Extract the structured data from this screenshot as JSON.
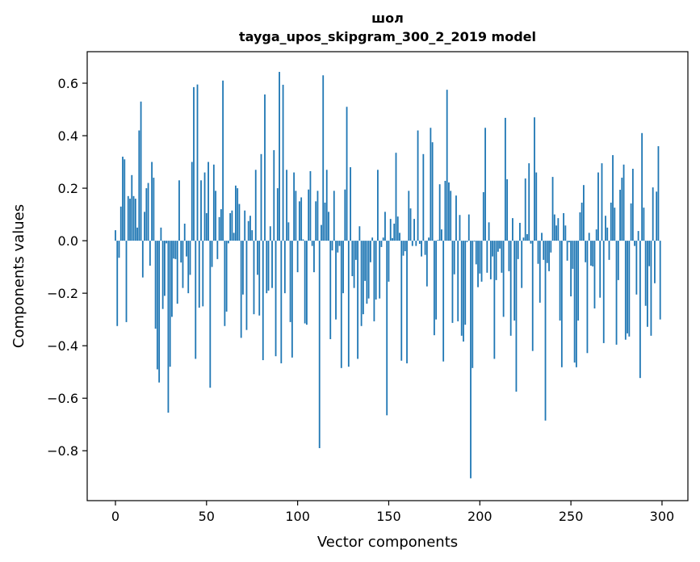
{
  "chart_data": {
    "type": "bar",
    "title": "шол",
    "subtitle": "tayga_upos_skipgram_300_2_2019 model",
    "xlabel": "Vector components",
    "ylabel": "Components values",
    "xlim": [
      -15.5,
      314.2
    ],
    "ylim": [
      -0.99,
      0.72
    ],
    "xticks": [
      0,
      50,
      100,
      150,
      200,
      250,
      300
    ],
    "xtick_labels": [
      "0",
      "50",
      "100",
      "150",
      "200",
      "250",
      "300"
    ],
    "yticks": [
      0.6,
      0.4,
      0.2,
      0.0,
      -0.2,
      -0.4,
      -0.6,
      -0.8
    ],
    "ytick_labels": [
      "0.6",
      "0.4",
      "0.2",
      "0.0",
      "−0.2",
      "−0.4",
      "−0.6",
      "−0.8"
    ],
    "grid": false,
    "color": "#1f77b4",
    "values": [
      0.04,
      -0.325,
      -0.065,
      0.13,
      0.32,
      0.31,
      -0.31,
      0.17,
      0.16,
      0.25,
      0.17,
      0.16,
      0.05,
      0.42,
      0.53,
      -0.14,
      0.11,
      0.2,
      0.22,
      -0.095,
      0.3,
      0.24,
      -0.335,
      -0.49,
      -0.54,
      0.05,
      -0.26,
      -0.21,
      -0.01,
      -0.655,
      -0.48,
      -0.29,
      -0.068,
      -0.07,
      -0.24,
      0.23,
      -0.083,
      -0.18,
      0.065,
      -0.06,
      -0.2,
      -0.13,
      0.3,
      0.585,
      -0.45,
      0.595,
      -0.255,
      0.23,
      -0.25,
      0.26,
      0.105,
      0.3,
      -0.56,
      -0.1,
      0.29,
      0.19,
      -0.07,
      0.09,
      0.12,
      0.61,
      -0.325,
      -0.27,
      -0.01,
      0.105,
      0.115,
      0.03,
      0.21,
      0.2,
      0.14,
      -0.37,
      -0.205,
      0.115,
      -0.34,
      0.075,
      0.095,
      0.04,
      -0.28,
      0.27,
      -0.13,
      -0.285,
      0.33,
      -0.455,
      0.557,
      -0.2,
      -0.19,
      0.055,
      -0.18,
      0.345,
      -0.44,
      0.2,
      0.643,
      -0.467,
      0.594,
      -0.2,
      0.27,
      0.07,
      -0.31,
      -0.445,
      0.26,
      0.19,
      -0.12,
      0.15,
      0.165,
      0.005,
      -0.315,
      -0.32,
      0.195,
      0.265,
      -0.02,
      -0.12,
      0.15,
      0.19,
      -0.79,
      0.06,
      0.63,
      0.145,
      0.27,
      0.11,
      -0.375,
      -0.037,
      0.19,
      -0.3,
      -0.045,
      -0.02,
      -0.485,
      -0.2,
      0.195,
      0.51,
      -0.48,
      0.28,
      -0.135,
      -0.18,
      -0.073,
      -0.45,
      0.055,
      -0.325,
      -0.28,
      -0.153,
      -0.24,
      -0.22,
      -0.082,
      0.012,
      -0.307,
      -0.224,
      0.27,
      -0.22,
      -0.024,
      0.012,
      0.11,
      -0.665,
      -0.156,
      0.083,
      0.01,
      0.065,
      0.335,
      0.092,
      0.03,
      -0.457,
      -0.057,
      -0.04,
      -0.467,
      0.19,
      0.123,
      -0.02,
      0.083,
      -0.02,
      0.42,
      -0.012,
      -0.06,
      0.33,
      -0.054,
      -0.174,
      0.012,
      0.43,
      0.375,
      -0.36,
      -0.3,
      0.003,
      0.215,
      0.043,
      -0.46,
      0.228,
      0.575,
      0.222,
      0.19,
      -0.313,
      -0.128,
      0.172,
      -0.307,
      0.098,
      -0.362,
      -0.384,
      -0.32,
      -0.005,
      0.1,
      -0.905,
      -0.485,
      -0.003,
      -0.09,
      -0.177,
      -0.125,
      -0.156,
      0.185,
      0.43,
      -0.122,
      0.07,
      -0.147,
      -0.06,
      -0.45,
      -0.15,
      -0.042,
      -0.03,
      -0.122,
      -0.29,
      0.468,
      0.234,
      -0.116,
      -0.362,
      0.086,
      -0.304,
      -0.575,
      -0.07,
      0.068,
      -0.18,
      0.012,
      0.237,
      0.025,
      0.295,
      -0.011,
      -0.42,
      0.47,
      0.26,
      -0.088,
      -0.236,
      0.03,
      -0.073,
      -0.685,
      -0.085,
      -0.116,
      -0.045,
      0.243,
      0.1,
      0.058,
      0.086,
      -0.304,
      -0.482,
      0.105,
      0.058,
      -0.076,
      -0.006,
      -0.212,
      -0.107,
      -0.464,
      -0.482,
      -0.304,
      0.108,
      0.145,
      0.212,
      -0.082,
      -0.428,
      0.03,
      -0.095,
      -0.098,
      -0.258,
      0.043,
      0.26,
      -0.217,
      0.295,
      -0.39,
      0.095,
      0.05,
      -0.073,
      0.145,
      0.326,
      0.126,
      -0.396,
      -0.15,
      0.194,
      0.24,
      0.29,
      -0.377,
      -0.353,
      -0.365,
      0.142,
      0.274,
      -0.02,
      -0.205,
      0.037,
      -0.523,
      0.41,
      0.126,
      -0.248,
      -0.328,
      -0.097,
      -0.362,
      0.203,
      -0.162,
      0.187,
      0.36,
      -0.3
    ]
  }
}
